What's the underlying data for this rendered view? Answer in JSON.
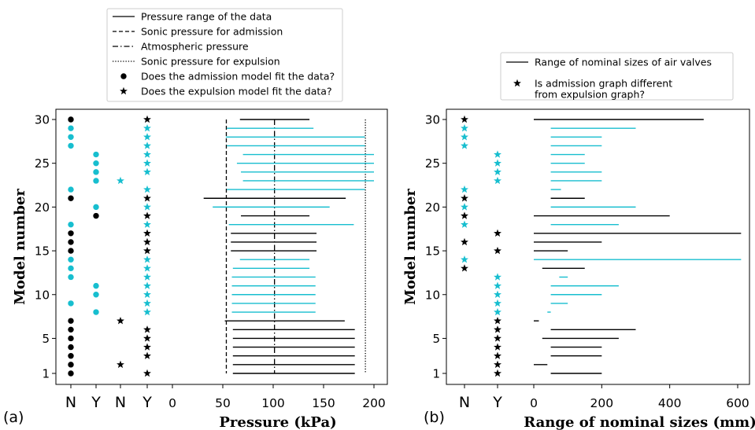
{
  "chart_data": [
    {
      "type": "scatter",
      "panel_label": "(a)",
      "xlabel": "Pressure (kPa)",
      "ylabel": "Model number",
      "xlim": [
        -72,
        214
      ],
      "ylim": [
        0,
        31
      ],
      "xticks": [
        0,
        50,
        100,
        150,
        200
      ],
      "yticks": [
        1,
        5,
        10,
        15,
        20,
        25,
        30
      ],
      "category_ticks": [
        "N",
        "Y",
        "N",
        "Y"
      ],
      "legend_position": "above",
      "legend": [
        {
          "label": "Pressure range of the data",
          "style": "solid"
        },
        {
          "label": "Sonic pressure for admission",
          "style": "dashed"
        },
        {
          "label": "Atmospheric pressure",
          "style": "dashdot"
        },
        {
          "label": "Sonic pressure for expulsion",
          "style": "dotted"
        },
        {
          "label": "Does the admission model fit the data?",
          "style": "dot"
        },
        {
          "label": "Does the expulsion model fit the data?",
          "style": "star"
        }
      ],
      "sonic_admission_kPa": 53.5,
      "atmospheric_kPa": 101.3,
      "sonic_expulsion_kPa": 191.5,
      "admission_fit": {
        "N": [
          1,
          2,
          3,
          4,
          5,
          6,
          7,
          9,
          12,
          13,
          14,
          15,
          16,
          17,
          18,
          21,
          22,
          27,
          28,
          29,
          30
        ],
        "Y": [
          8,
          10,
          11,
          19,
          20,
          23,
          24,
          25,
          26
        ]
      },
      "expulsion_fit": {
        "N": [
          2,
          7,
          23
        ],
        "Y": [
          1,
          3,
          4,
          5,
          6,
          8,
          9,
          10,
          11,
          12,
          13,
          14,
          15,
          16,
          17,
          18,
          19,
          20,
          21,
          22,
          24,
          25,
          26,
          27,
          28,
          29,
          30
        ]
      },
      "pressure_ranges": [
        {
          "model": 1,
          "min": 60,
          "max": 181
        },
        {
          "model": 2,
          "min": 60,
          "max": 181
        },
        {
          "model": 3,
          "min": 60,
          "max": 181
        },
        {
          "model": 4,
          "min": 60,
          "max": 181
        },
        {
          "model": 5,
          "min": 60,
          "max": 181
        },
        {
          "model": 6,
          "min": 60,
          "max": 181
        },
        {
          "model": 7,
          "min": 52,
          "max": 171
        },
        {
          "model": 8,
          "min": 59,
          "max": 142
        },
        {
          "model": 9,
          "min": 59,
          "max": 142
        },
        {
          "model": 10,
          "min": 59,
          "max": 142
        },
        {
          "model": 11,
          "min": 59,
          "max": 142
        },
        {
          "model": 12,
          "min": 59,
          "max": 142
        },
        {
          "model": 13,
          "min": 60,
          "max": 136
        },
        {
          "model": 14,
          "min": 67,
          "max": 136
        },
        {
          "model": 15,
          "min": 58,
          "max": 143
        },
        {
          "model": 16,
          "min": 58,
          "max": 143
        },
        {
          "model": 17,
          "min": 58,
          "max": 143
        },
        {
          "model": 18,
          "min": 56,
          "max": 180
        },
        {
          "model": 19,
          "min": 68,
          "max": 136
        },
        {
          "model": 20,
          "min": 40,
          "max": 156
        },
        {
          "model": 21,
          "min": 31,
          "max": 172
        },
        {
          "model": 22,
          "min": 54,
          "max": 191
        },
        {
          "model": 23,
          "min": 70,
          "max": 200
        },
        {
          "model": 24,
          "min": 68,
          "max": 200
        },
        {
          "model": 25,
          "min": 64,
          "max": 200
        },
        {
          "model": 26,
          "min": 70,
          "max": 200
        },
        {
          "model": 27,
          "min": 54,
          "max": 191
        },
        {
          "model": 28,
          "min": 53,
          "max": 191
        },
        {
          "model": 29,
          "min": 54,
          "max": 140
        },
        {
          "model": 30,
          "min": 67,
          "max": 136
        }
      ]
    },
    {
      "type": "scatter",
      "panel_label": "(b)",
      "xlabel": "Range of nominal sizes (mm)",
      "ylabel": "Model number",
      "xlim": [
        -210,
        670
      ],
      "ylim": [
        0,
        31
      ],
      "xticks": [
        0,
        200,
        400,
        600
      ],
      "yticks": [
        1,
        5,
        10,
        15,
        20,
        25,
        30
      ],
      "category_ticks": [
        "N",
        "Y"
      ],
      "legend_position": "above",
      "legend": [
        {
          "label": "Range of nominal sizes of air valves",
          "style": "solid"
        },
        {
          "label": "Is admission graph different\n from expulsion graph?",
          "style": "star"
        }
      ],
      "graph_different": {
        "N": [
          13,
          14,
          16,
          18,
          19,
          20,
          21,
          22,
          27,
          28,
          29,
          30
        ],
        "Y": [
          1,
          2,
          3,
          4,
          5,
          6,
          7,
          8,
          9,
          10,
          11,
          12,
          15,
          17,
          23,
          24,
          25,
          26
        ]
      },
      "size_ranges": [
        {
          "model": 1,
          "min": 50,
          "max": 200
        },
        {
          "model": 2,
          "min": 0,
          "max": 40
        },
        {
          "model": 3,
          "min": 50,
          "max": 200
        },
        {
          "model": 4,
          "min": 50,
          "max": 200
        },
        {
          "model": 5,
          "min": 25,
          "max": 250
        },
        {
          "model": 6,
          "min": 50,
          "max": 300
        },
        {
          "model": 7,
          "min": 0,
          "max": 15
        },
        {
          "model": 8,
          "min": 40,
          "max": 50
        },
        {
          "model": 9,
          "min": 50,
          "max": 100
        },
        {
          "model": 10,
          "min": 50,
          "max": 200
        },
        {
          "model": 11,
          "min": 50,
          "max": 250
        },
        {
          "model": 12,
          "min": 75,
          "max": 100
        },
        {
          "model": 13,
          "min": 25,
          "max": 150
        },
        {
          "model": 14,
          "min": 0,
          "max": 610
        },
        {
          "model": 15,
          "min": 0,
          "max": 100
        },
        {
          "model": 16,
          "min": 0,
          "max": 200
        },
        {
          "model": 17,
          "min": 0,
          "max": 610
        },
        {
          "model": 18,
          "min": 50,
          "max": 250
        },
        {
          "model": 19,
          "min": 0,
          "max": 400
        },
        {
          "model": 20,
          "min": 50,
          "max": 300
        },
        {
          "model": 21,
          "min": 50,
          "max": 150
        },
        {
          "model": 22,
          "min": 50,
          "max": 80
        },
        {
          "model": 23,
          "min": 50,
          "max": 200
        },
        {
          "model": 24,
          "min": 50,
          "max": 200
        },
        {
          "model": 25,
          "min": 50,
          "max": 150
        },
        {
          "model": 26,
          "min": 50,
          "max": 150
        },
        {
          "model": 27,
          "min": 50,
          "max": 200
        },
        {
          "model": 28,
          "min": 50,
          "max": 200
        },
        {
          "model": 29,
          "min": 50,
          "max": 300
        },
        {
          "model": 30,
          "min": 0,
          "max": 500
        }
      ]
    }
  ],
  "colors": {
    "black": "#000000",
    "cyan": "#17becf",
    "frame": "#000000",
    "legend_border": "#cccccc"
  }
}
